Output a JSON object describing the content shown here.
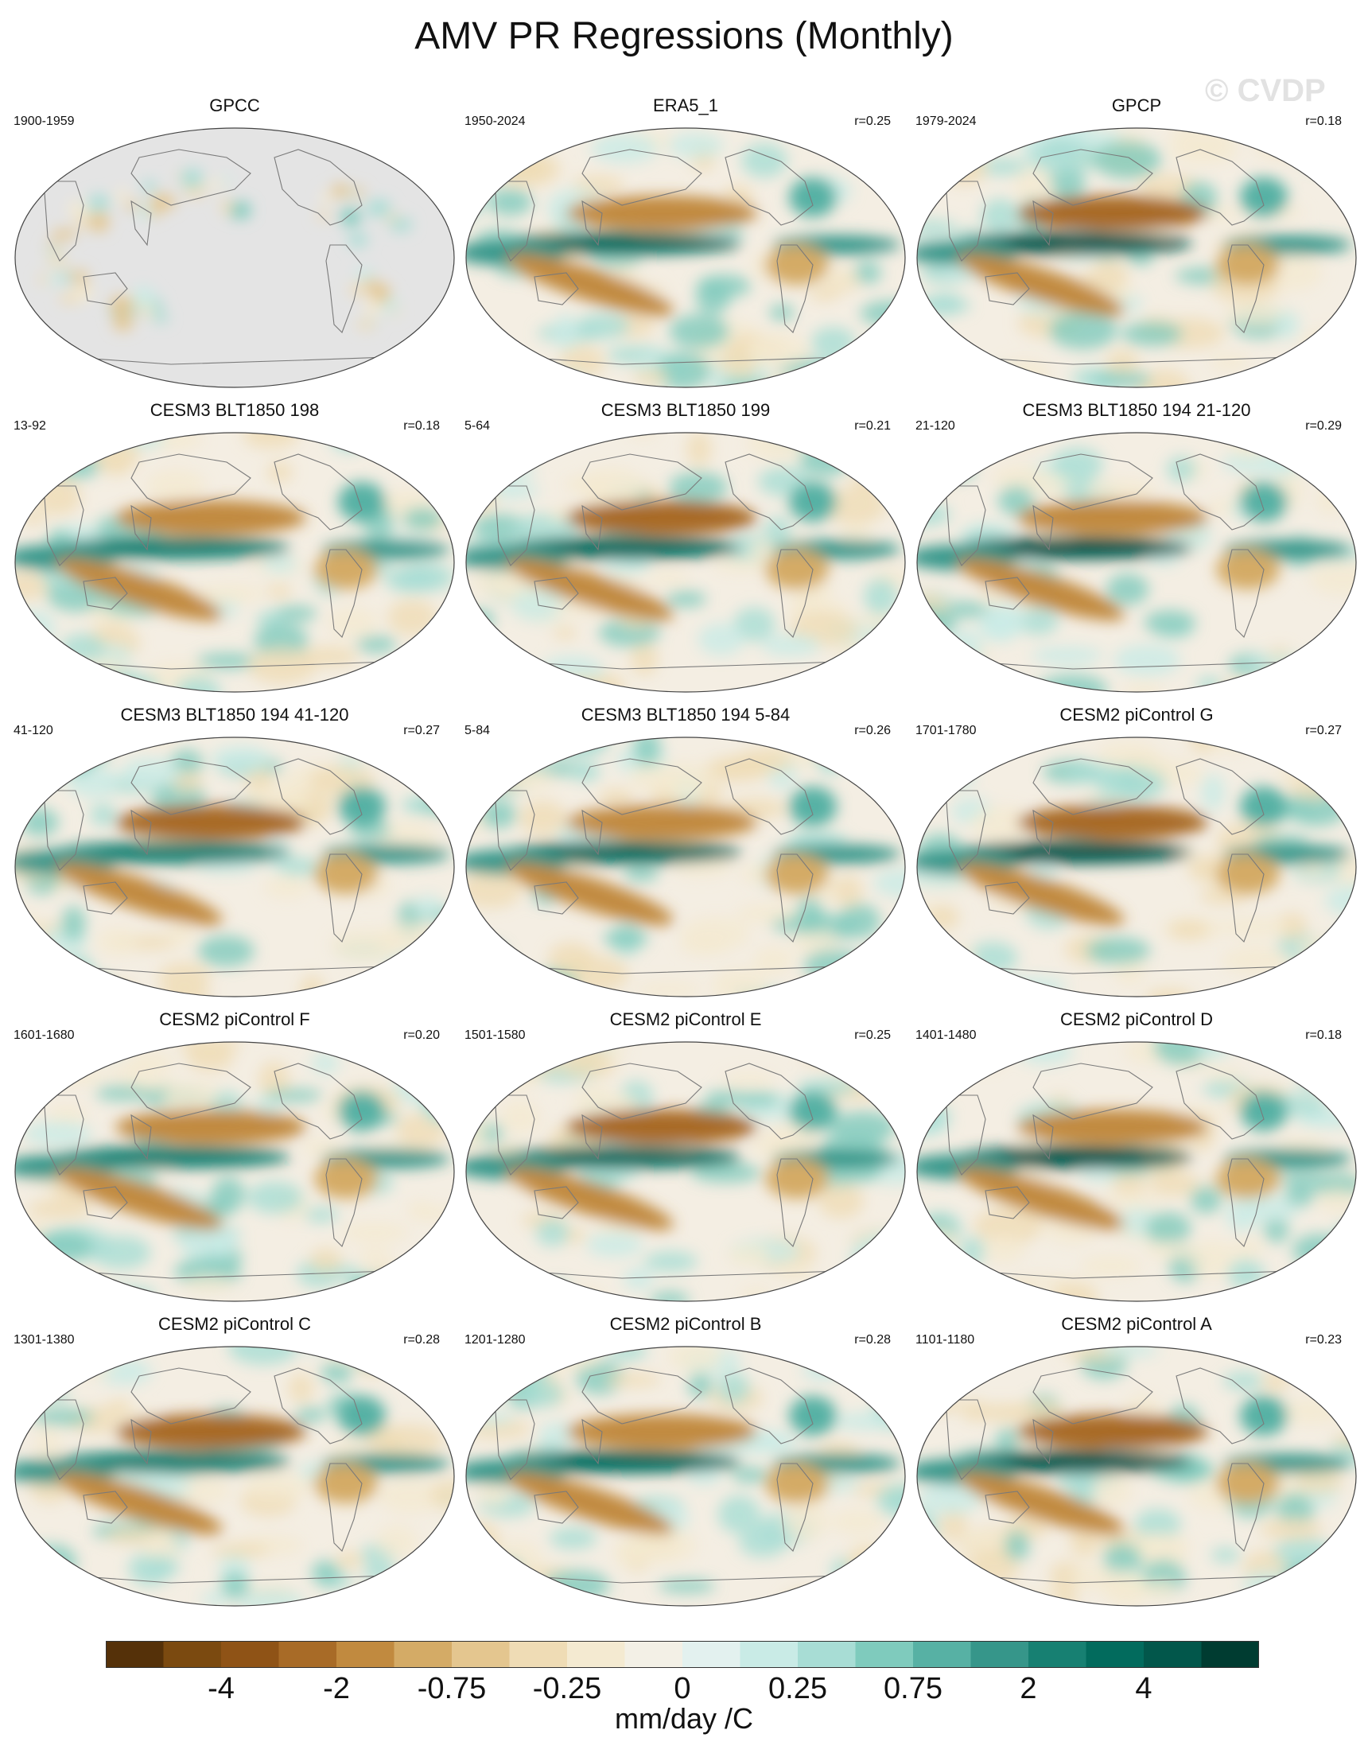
{
  "title": "AMV PR Regressions (Monthly)",
  "watermark": "© CVDP",
  "panels": [
    {
      "title": "GPCC",
      "period": "1900-1959",
      "corr": "",
      "style": "sparse"
    },
    {
      "title": "ERA5_1",
      "period": "1950-2024",
      "corr": "r=0.25",
      "style": "full"
    },
    {
      "title": "GPCP",
      "period": "1979-2024",
      "corr": "r=0.18",
      "style": "full"
    },
    {
      "title": "CESM3 BLT1850 198",
      "period": "13-92",
      "corr": "r=0.18",
      "style": "full"
    },
    {
      "title": "CESM3 BLT1850 199",
      "period": "5-64",
      "corr": "r=0.21",
      "style": "full"
    },
    {
      "title": "CESM3 BLT1850 194 21-120",
      "period": "21-120",
      "corr": "r=0.29",
      "style": "full"
    },
    {
      "title": "CESM3 BLT1850 194 41-120",
      "period": "41-120",
      "corr": "r=0.27",
      "style": "full"
    },
    {
      "title": "CESM3 BLT1850 194 5-84",
      "period": "5-84",
      "corr": "r=0.26",
      "style": "full"
    },
    {
      "title": "CESM2 piControl G",
      "period": "1701-1780",
      "corr": "r=0.27",
      "style": "full"
    },
    {
      "title": "CESM2 piControl F",
      "period": "1601-1680",
      "corr": "r=0.20",
      "style": "full"
    },
    {
      "title": "CESM2 piControl E",
      "period": "1501-1580",
      "corr": "r=0.25",
      "style": "full"
    },
    {
      "title": "CESM2 piControl D",
      "period": "1401-1480",
      "corr": "r=0.18",
      "style": "full"
    },
    {
      "title": "CESM2 piControl C",
      "period": "1301-1380",
      "corr": "r=0.28",
      "style": "full"
    },
    {
      "title": "CESM2 piControl B",
      "period": "1201-1280",
      "corr": "r=0.28",
      "style": "full"
    },
    {
      "title": "CESM2 piControl A",
      "period": "1101-1180",
      "corr": "r=0.23",
      "style": "full"
    }
  ],
  "colorbar": {
    "colors": [
      "#553109",
      "#7b4a10",
      "#8f5316",
      "#a86b27",
      "#c18a3f",
      "#d4ab66",
      "#e4c68f",
      "#efdcb5",
      "#f4ead1",
      "#f3f0e6",
      "#e3f1ef",
      "#c9ebe6",
      "#a8ddd5",
      "#7fcbbd",
      "#57b1a4",
      "#36968a",
      "#178072",
      "#026b5d",
      "#02574b",
      "#003c31"
    ],
    "labels": [
      "-4",
      "-2",
      "-0.75",
      "-0.25",
      "0",
      "0.25",
      "0.75",
      "2",
      "4"
    ],
    "units": "mm/day /C"
  },
  "colors": {
    "land_mask": "#e4e4e4",
    "coast": "#7a7a7a",
    "map_bg": "#f4eee3"
  }
}
